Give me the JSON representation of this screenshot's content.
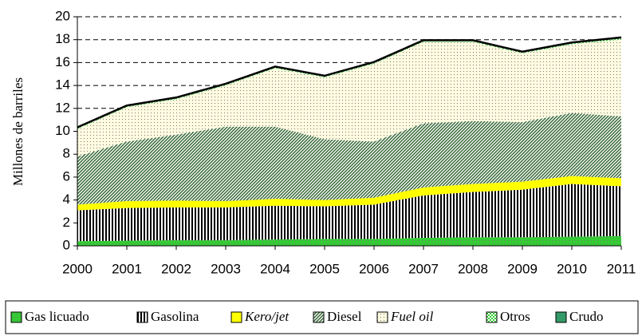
{
  "chart_data": {
    "type": "stacked_area",
    "y_label": "Millones de barriles",
    "x": [
      2000,
      2001,
      2002,
      2003,
      2004,
      2005,
      2006,
      2007,
      2008,
      2009,
      2010,
      2011
    ],
    "xlim": [
      2000,
      2011
    ],
    "xticks": [
      2000,
      2001,
      2002,
      2003,
      2004,
      2005,
      2006,
      2007,
      2008,
      2009,
      2010,
      2011
    ],
    "ylim": [
      0,
      20
    ],
    "yticks": [
      0,
      2,
      4,
      6,
      8,
      10,
      12,
      14,
      16,
      18,
      20
    ],
    "grid": true,
    "legend": "bottom",
    "series": [
      {
        "name": "Gas licuado",
        "color": "#33cc33",
        "pattern": "dots",
        "values": [
          0.4,
          0.45,
          0.5,
          0.5,
          0.55,
          0.6,
          0.6,
          0.7,
          0.75,
          0.75,
          0.8,
          0.85
        ]
      },
      {
        "name": "Gasolina",
        "color": "#000000",
        "pattern": "vertical",
        "values": [
          2.7,
          2.85,
          2.85,
          2.85,
          2.95,
          2.85,
          3.0,
          3.7,
          3.95,
          4.15,
          4.6,
          4.35
        ]
      },
      {
        "name": "Kero/jet",
        "color": "#ffff00",
        "pattern": "solid",
        "italic": true,
        "values": [
          0.5,
          0.6,
          0.6,
          0.55,
          0.6,
          0.55,
          0.6,
          0.7,
          0.7,
          0.7,
          0.7,
          0.7
        ]
      },
      {
        "name": "Diesel",
        "color": "#336633",
        "pattern": "diagonal",
        "values": [
          4.2,
          5.2,
          5.75,
          6.5,
          6.3,
          5.3,
          4.9,
          5.6,
          5.5,
          5.2,
          5.5,
          5.4
        ]
      },
      {
        "name": "Fuel oil",
        "color": "#fffbe0",
        "pattern": "dots",
        "italic": true,
        "values": [
          2.4,
          3.0,
          3.1,
          3.6,
          5.1,
          5.4,
          6.8,
          7.1,
          6.9,
          6.0,
          6.0,
          6.7
        ]
      },
      {
        "name": "Otros",
        "color": "#33cc33",
        "pattern": "checker",
        "values": [
          0.1,
          0.1,
          0.1,
          0.1,
          0.1,
          0.1,
          0.1,
          0.1,
          0.1,
          0.1,
          0.1,
          0.1
        ]
      },
      {
        "name": "Crudo",
        "color": "#339966",
        "pattern": "solid",
        "values": [
          0.05,
          0.05,
          0.05,
          0.05,
          0.05,
          0.05,
          0.05,
          0.05,
          0.05,
          0.05,
          0.05,
          0.1
        ]
      }
    ]
  }
}
